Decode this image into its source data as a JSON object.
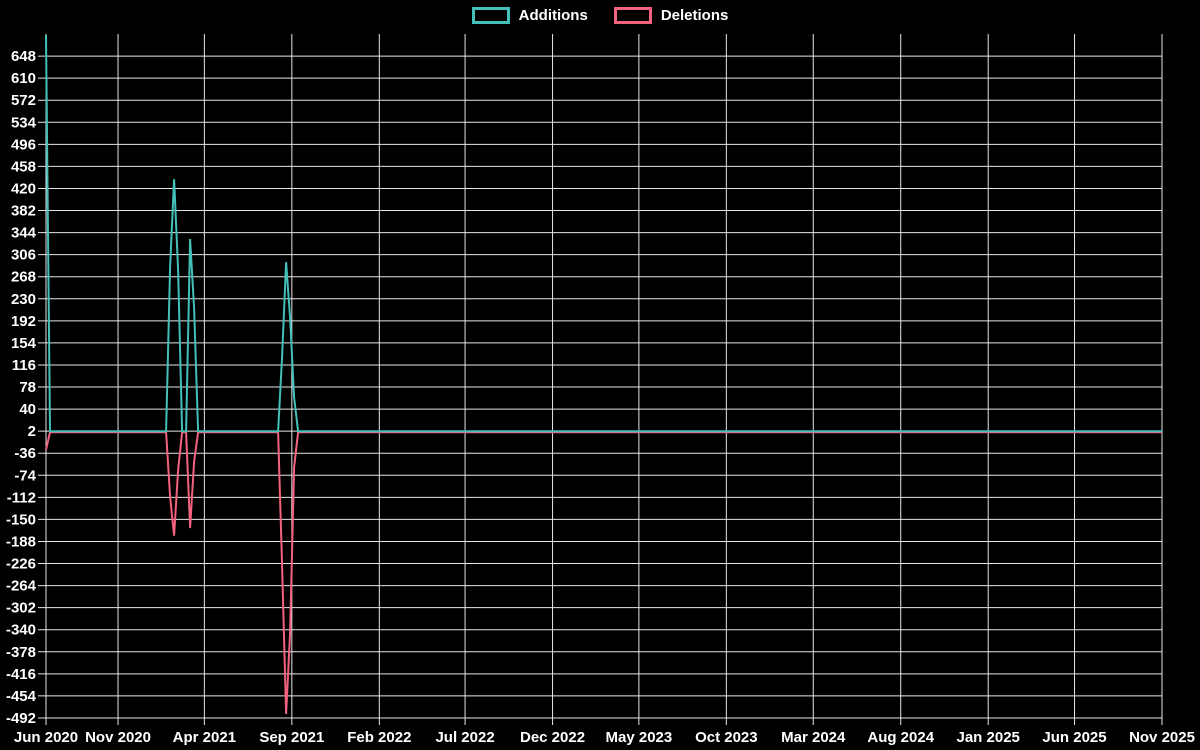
{
  "chart_data": {
    "type": "line",
    "title": "",
    "legend": {
      "position": "top-center",
      "items": [
        "Additions",
        "Deletions"
      ]
    },
    "grid": true,
    "background_color": "#000000",
    "gridline_color": "#e6e6e6",
    "text_color": "#ffffff",
    "x_axis": {
      "type": "time",
      "min": "2020-06-28",
      "max": "2025-11-01",
      "ticks": [
        {
          "label": "Jun 2020",
          "date": "2020-06-28"
        },
        {
          "label": "Nov 2020",
          "date": "2020-11-01"
        },
        {
          "label": "Apr 2021",
          "date": "2021-04-01"
        },
        {
          "label": "Sep 2021",
          "date": "2021-09-01"
        },
        {
          "label": "Feb 2022",
          "date": "2022-02-01"
        },
        {
          "label": "Jul 2022",
          "date": "2022-07-01"
        },
        {
          "label": "Dec 2022",
          "date": "2022-12-01"
        },
        {
          "label": "May 2023",
          "date": "2023-05-01"
        },
        {
          "label": "Oct 2023",
          "date": "2023-10-01"
        },
        {
          "label": "Mar 2024",
          "date": "2024-03-01"
        },
        {
          "label": "Aug 2024",
          "date": "2024-08-01"
        },
        {
          "label": "Jan 2025",
          "date": "2025-01-01"
        },
        {
          "label": "Jun 2025",
          "date": "2025-06-01"
        },
        {
          "label": "Nov 2025",
          "date": "2025-11-01"
        }
      ]
    },
    "y_axis": {
      "min": -492,
      "max": 686,
      "tick_step": 38,
      "ticks": [
        648,
        610,
        572,
        534,
        496,
        458,
        420,
        382,
        344,
        306,
        268,
        230,
        192,
        154,
        116,
        78,
        40,
        2,
        -36,
        -74,
        -112,
        -150,
        -188,
        -226,
        -264,
        -302,
        -340,
        -378,
        -416,
        -454,
        -492
      ]
    },
    "series": [
      {
        "name": "Additions",
        "color": "#42c0b9",
        "points": [
          [
            "2020-06-28",
            684
          ],
          [
            "2020-07-05",
            2
          ],
          [
            "2021-01-24",
            2
          ],
          [
            "2021-01-31",
            285
          ],
          [
            "2021-02-07",
            436
          ],
          [
            "2021-02-14",
            280
          ],
          [
            "2021-02-21",
            2
          ],
          [
            "2021-02-28",
            2
          ],
          [
            "2021-03-07",
            333
          ],
          [
            "2021-03-14",
            214
          ],
          [
            "2021-03-21",
            2
          ],
          [
            "2021-08-08",
            2
          ],
          [
            "2021-08-15",
            130
          ],
          [
            "2021-08-22",
            293
          ],
          [
            "2021-08-29",
            197
          ],
          [
            "2021-09-05",
            60
          ],
          [
            "2021-09-12",
            2
          ],
          [
            "2025-11-01",
            2
          ]
        ]
      },
      {
        "name": "Deletions",
        "color": "#f4637e",
        "points": [
          [
            "2020-06-28",
            -30
          ],
          [
            "2020-07-05",
            0
          ],
          [
            "2021-01-24",
            0
          ],
          [
            "2021-01-31",
            -111
          ],
          [
            "2021-02-07",
            -178
          ],
          [
            "2021-02-14",
            -65
          ],
          [
            "2021-02-21",
            0
          ],
          [
            "2021-02-28",
            0
          ],
          [
            "2021-03-07",
            -165
          ],
          [
            "2021-03-14",
            -50
          ],
          [
            "2021-03-21",
            0
          ],
          [
            "2021-08-08",
            0
          ],
          [
            "2021-08-15",
            -230
          ],
          [
            "2021-08-22",
            -485
          ],
          [
            "2021-08-29",
            -345
          ],
          [
            "2021-09-05",
            -60
          ],
          [
            "2021-09-12",
            0
          ],
          [
            "2025-11-01",
            0
          ]
        ]
      }
    ]
  }
}
